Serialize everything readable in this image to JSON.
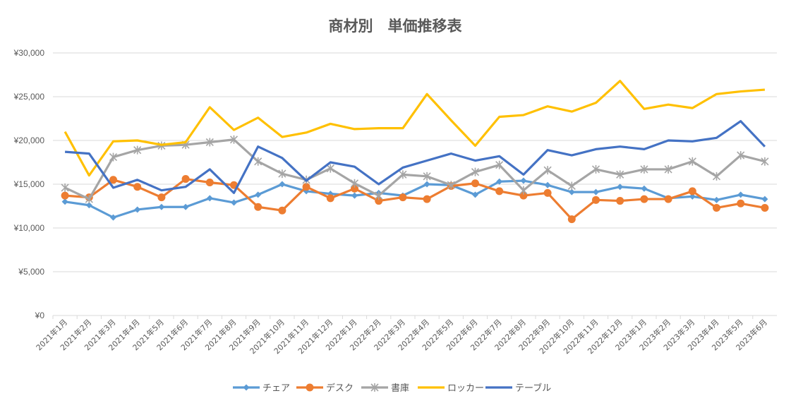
{
  "chart_data": {
    "type": "line",
    "title": "商材別　単価推移表",
    "xlabel": "",
    "ylabel": "",
    "ylim": [
      0,
      30000
    ],
    "yticks": [
      0,
      5000,
      10000,
      15000,
      20000,
      25000,
      30000
    ],
    "ytick_labels": [
      "¥0",
      "¥5,000",
      "¥10,000",
      "¥15,000",
      "¥20,000",
      "¥25,000",
      "¥30,000"
    ],
    "grid": true,
    "legend_position": "bottom",
    "categories": [
      "2021年1月",
      "2021年2月",
      "2021年3月",
      "2021年4月",
      "2021年5月",
      "2021年6月",
      "2021年7月",
      "2021年8月",
      "2021年9月",
      "2021年10月",
      "2021年11月",
      "2021年12月",
      "2022年1月",
      "2022年2月",
      "2022年3月",
      "2022年4月",
      "2022年5月",
      "2022年6月",
      "2022年7月",
      "2022年8月",
      "2022年9月",
      "2022年10月",
      "2022年11月",
      "2022年12月",
      "2023年1月",
      "2023年2月",
      "2023年3月",
      "2023年4月",
      "2023年5月",
      "2023年6月"
    ],
    "series": [
      {
        "name": "チェア",
        "color": "#5b9bd5",
        "marker": "diamond",
        "values": [
          13000,
          12600,
          11200,
          12100,
          12400,
          12400,
          13400,
          12900,
          13800,
          15000,
          14200,
          13900,
          13700,
          14000,
          13700,
          15000,
          14900,
          13800,
          15300,
          15400,
          14900,
          14100,
          14100,
          14700,
          14500,
          13400,
          13600,
          13200,
          13800,
          13300
        ]
      },
      {
        "name": "デスク",
        "color": "#ed7d31",
        "marker": "circle",
        "values": [
          13700,
          13500,
          15500,
          14700,
          13500,
          15600,
          15200,
          14900,
          12400,
          12000,
          14700,
          13400,
          14500,
          13100,
          13500,
          13300,
          14800,
          15100,
          14200,
          13700,
          14000,
          11000,
          13200,
          13100,
          13300,
          13300,
          14200,
          12300,
          12800,
          12300
        ]
      },
      {
        "name": "書庫",
        "color": "#a5a5a5",
        "marker": "star",
        "values": [
          14600,
          13300,
          18100,
          18900,
          19400,
          19500,
          19800,
          20100,
          17600,
          16200,
          15500,
          16800,
          15100,
          13700,
          16100,
          15900,
          14900,
          16400,
          17200,
          14300,
          16600,
          14800,
          16700,
          16100,
          16700,
          16700,
          17600,
          15900,
          18300,
          17600
        ]
      },
      {
        "name": "ロッカー",
        "color": "#ffc000",
        "marker": "none",
        "values": [
          21000,
          16000,
          19900,
          20000,
          19500,
          19800,
          23800,
          21200,
          22600,
          20400,
          20900,
          21900,
          21300,
          21400,
          21400,
          25300,
          22300,
          19400,
          22700,
          22900,
          23900,
          23300,
          24300,
          26800,
          23600,
          24100,
          23700,
          25300,
          25600,
          25800
        ]
      },
      {
        "name": "テーブル",
        "color": "#4472c4",
        "marker": "none",
        "values": [
          18700,
          18500,
          14600,
          15500,
          14300,
          14700,
          16700,
          14000,
          19300,
          18000,
          15400,
          17500,
          17000,
          15000,
          16900,
          17700,
          18500,
          17700,
          18200,
          16100,
          18900,
          18300,
          19000,
          19300,
          19000,
          20000,
          19900,
          20300,
          22200,
          19300
        ]
      }
    ]
  }
}
